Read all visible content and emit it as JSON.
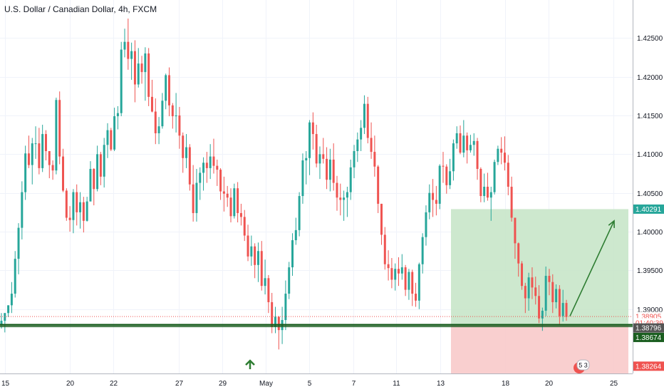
{
  "header": {
    "title": "U.S. Dollar / Canadian Dollar, 4h, FXCM"
  },
  "colors": {
    "up": "#26a69a",
    "down": "#ef5350",
    "profit_zone": "#c8e6c9",
    "loss_zone": "#f8caca",
    "support_line": "#1b5e20",
    "arrow": "#2e7d32"
  },
  "chart_data": {
    "type": "candlestick",
    "title": "U.S. Dollar / Canadian Dollar, 4h, FXCM",
    "ylim": [
      1.3817,
      1.4299
    ],
    "y_ticks": [
      "1.42500",
      "1.42000",
      "1.41500",
      "1.41000",
      "1.40500",
      "1.40000",
      "1.39500",
      "1.39000"
    ],
    "x_ticks": [
      "15",
      "20",
      "22",
      "27",
      "29",
      "May",
      "5",
      "7",
      "11",
      "13",
      "18",
      "20",
      "25"
    ],
    "price_tags": [
      {
        "label": "1.40291",
        "value": 1.40291,
        "bg": "#26a69a",
        "fg": "#ffffff"
      },
      {
        "label": "1.38905",
        "value": 1.38905,
        "bg": "#ffffff",
        "fg": "#ef5350"
      },
      {
        "label": "01:40:39",
        "value": 1.38825,
        "bg": "#ffffff",
        "fg": "#ef5350"
      },
      {
        "label": "1.38796",
        "value": 1.38757,
        "bg": "#555555",
        "fg": "#ffffff"
      },
      {
        "label": "1.38674",
        "value": 1.38635,
        "bg": "#1b5e20",
        "fg": "#ffffff"
      },
      {
        "label": "1.38264",
        "value": 1.38264,
        "bg": "#ef5350",
        "fg": "#ffffff"
      }
    ],
    "position": {
      "entry": 1.38796,
      "target": 1.40291,
      "stop": 1.38264
    },
    "support_level": 1.38796,
    "current_price": 1.38905,
    "badge": "5 3",
    "candles": [
      [
        1.388,
        1.3895,
        1.3875,
        1.3885
      ],
      [
        1.3885,
        1.3895,
        1.387,
        1.3895
      ],
      [
        1.3895,
        1.3905,
        1.389,
        1.3905
      ],
      [
        1.3905,
        1.3935,
        1.3895,
        1.392
      ],
      [
        1.392,
        1.3975,
        1.3915,
        1.3965
      ],
      [
        1.3965,
        1.4011,
        1.3945,
        1.4005
      ],
      [
        1.4005,
        1.4065,
        1.399,
        1.4051
      ],
      [
        1.4051,
        1.4111,
        1.4041,
        1.4101
      ],
      [
        1.4101,
        1.4124,
        1.4082,
        1.4086
      ],
      [
        1.4086,
        1.4121,
        1.4061,
        1.4114
      ],
      [
        1.4114,
        1.4136,
        1.4094,
        1.4114
      ],
      [
        1.4114,
        1.4134,
        1.4074,
        1.4082
      ],
      [
        1.4082,
        1.4138,
        1.4077,
        1.4126
      ],
      [
        1.4126,
        1.4131,
        1.4092,
        1.4104
      ],
      [
        1.4104,
        1.4104,
        1.4069,
        1.4086
      ],
      [
        1.4086,
        1.4092,
        1.4067,
        1.4079
      ],
      [
        1.4079,
        1.4173,
        1.4074,
        1.417
      ],
      [
        1.417,
        1.4181,
        1.4087,
        1.4097
      ],
      [
        1.4097,
        1.4107,
        1.4051,
        1.4053
      ],
      [
        1.4053,
        1.4056,
        1.4014,
        1.4018
      ],
      [
        1.4018,
        1.4033,
        1.4,
        1.4015
      ],
      [
        1.4015,
        1.4055,
        1.3998,
        1.4051
      ],
      [
        1.4051,
        1.4061,
        1.4008,
        1.4025
      ],
      [
        1.4025,
        1.4051,
        1.4004,
        1.4038
      ],
      [
        1.4038,
        1.4045,
        1.3999,
        1.4014
      ],
      [
        1.4014,
        1.4045,
        1.4013,
        1.4039
      ],
      [
        1.4039,
        1.4091,
        1.4039,
        1.4081
      ],
      [
        1.4081,
        1.4082,
        1.4034,
        1.4055
      ],
      [
        1.4055,
        1.4111,
        1.4052,
        1.41
      ],
      [
        1.41,
        1.4103,
        1.406,
        1.4071
      ],
      [
        1.4071,
        1.4121,
        1.4057,
        1.4112
      ],
      [
        1.4112,
        1.414,
        1.4095,
        1.4131
      ],
      [
        1.4131,
        1.4134,
        1.4104,
        1.4106
      ],
      [
        1.4106,
        1.416,
        1.4104,
        1.4149
      ],
      [
        1.4149,
        1.4162,
        1.4132,
        1.4153
      ],
      [
        1.4153,
        1.4245,
        1.4149,
        1.4235
      ],
      [
        1.4235,
        1.4262,
        1.4225,
        1.4245
      ],
      [
        1.4245,
        1.4275,
        1.4209,
        1.4223
      ],
      [
        1.4223,
        1.4244,
        1.4196,
        1.4233
      ],
      [
        1.4233,
        1.4247,
        1.4167,
        1.419
      ],
      [
        1.419,
        1.4237,
        1.4186,
        1.4217
      ],
      [
        1.4217,
        1.4227,
        1.4191,
        1.4206
      ],
      [
        1.4206,
        1.4238,
        1.4169,
        1.423
      ],
      [
        1.423,
        1.4237,
        1.4162,
        1.4174
      ],
      [
        1.4174,
        1.4196,
        1.4154,
        1.4155
      ],
      [
        1.4155,
        1.4172,
        1.4113,
        1.4127
      ],
      [
        1.4127,
        1.4148,
        1.4113,
        1.4136
      ],
      [
        1.4136,
        1.4179,
        1.4133,
        1.4169
      ],
      [
        1.4169,
        1.4204,
        1.4158,
        1.4202
      ],
      [
        1.4202,
        1.4212,
        1.4149,
        1.4163
      ],
      [
        1.4163,
        1.4166,
        1.4133,
        1.4149
      ],
      [
        1.4149,
        1.4179,
        1.4128,
        1.415
      ],
      [
        1.415,
        1.4161,
        1.4107,
        1.4124
      ],
      [
        1.4124,
        1.4128,
        1.4076,
        1.4095
      ],
      [
        1.4095,
        1.4126,
        1.4082,
        1.4109
      ],
      [
        1.4109,
        1.4113,
        1.4053,
        1.4061
      ],
      [
        1.4061,
        1.4086,
        1.4013,
        1.4024
      ],
      [
        1.4024,
        1.4081,
        1.4013,
        1.4063
      ],
      [
        1.4063,
        1.4083,
        1.4041,
        1.4076
      ],
      [
        1.4076,
        1.4096,
        1.4053,
        1.4089
      ],
      [
        1.4089,
        1.4103,
        1.4063,
        1.4082
      ],
      [
        1.4082,
        1.4113,
        1.4068,
        1.4097
      ],
      [
        1.4097,
        1.412,
        1.4075,
        1.4085
      ],
      [
        1.4085,
        1.4093,
        1.4059,
        1.408
      ],
      [
        1.408,
        1.4082,
        1.4041,
        1.4052
      ],
      [
        1.4052,
        1.4071,
        1.4026,
        1.4049
      ],
      [
        1.4049,
        1.4059,
        1.4032,
        1.4044
      ],
      [
        1.4044,
        1.4056,
        1.4012,
        1.402
      ],
      [
        1.402,
        1.4062,
        1.4017,
        1.4056
      ],
      [
        1.4056,
        1.4064,
        1.4012,
        1.4024
      ],
      [
        1.4024,
        1.4036,
        1.4008,
        1.4019
      ],
      [
        1.4019,
        1.4028,
        1.3988,
        1.3995
      ],
      [
        1.3995,
        1.4009,
        1.3962,
        1.3968
      ],
      [
        1.3968,
        1.3995,
        1.3956,
        1.3981
      ],
      [
        1.3981,
        1.3985,
        1.394,
        1.3957
      ],
      [
        1.3957,
        1.3986,
        1.3935,
        1.3975
      ],
      [
        1.3975,
        1.3988,
        1.3924,
        1.393
      ],
      [
        1.393,
        1.3964,
        1.3919,
        1.394
      ],
      [
        1.394,
        1.3944,
        1.3895,
        1.3909
      ],
      [
        1.3909,
        1.3921,
        1.3869,
        1.3877
      ],
      [
        1.3877,
        1.3903,
        1.3869,
        1.389
      ],
      [
        1.389,
        1.3891,
        1.3848,
        1.3873
      ],
      [
        1.3873,
        1.3903,
        1.3855,
        1.3886
      ],
      [
        1.3886,
        1.3937,
        1.3873,
        1.392
      ],
      [
        1.392,
        1.3961,
        1.3913,
        1.3954
      ],
      [
        1.3954,
        1.3998,
        1.3943,
        1.3989
      ],
      [
        1.3989,
        1.4018,
        1.3983,
        1.4002
      ],
      [
        1.4002,
        1.4051,
        1.3994,
        1.4046
      ],
      [
        1.4046,
        1.4101,
        1.4036,
        1.4092
      ],
      [
        1.4092,
        1.4104,
        1.4061,
        1.4095
      ],
      [
        1.4095,
        1.4144,
        1.4073,
        1.4141
      ],
      [
        1.4141,
        1.4154,
        1.4106,
        1.4126
      ],
      [
        1.4126,
        1.4138,
        1.4083,
        1.4088
      ],
      [
        1.4088,
        1.411,
        1.4068,
        1.41
      ],
      [
        1.41,
        1.4121,
        1.4088,
        1.4094
      ],
      [
        1.4094,
        1.4109,
        1.4055,
        1.4067
      ],
      [
        1.4067,
        1.4107,
        1.4052,
        1.4093
      ],
      [
        1.4093,
        1.4114,
        1.4053,
        1.4063
      ],
      [
        1.4063,
        1.4072,
        1.4027,
        1.4044
      ],
      [
        1.4044,
        1.4062,
        1.4021,
        1.4041
      ],
      [
        1.4041,
        1.4053,
        1.4014,
        1.4044
      ],
      [
        1.4044,
        1.4058,
        1.4019,
        1.4051
      ],
      [
        1.4051,
        1.4093,
        1.4041,
        1.4083
      ],
      [
        1.4083,
        1.4112,
        1.4069,
        1.4104
      ],
      [
        1.4104,
        1.4128,
        1.409,
        1.4119
      ],
      [
        1.4119,
        1.4144,
        1.4104,
        1.4134
      ],
      [
        1.4134,
        1.4176,
        1.4126,
        1.4165
      ],
      [
        1.4165,
        1.4174,
        1.4114,
        1.4121
      ],
      [
        1.4121,
        1.4141,
        1.4094,
        1.4103
      ],
      [
        1.4103,
        1.4124,
        1.4071,
        1.4084
      ],
      [
        1.4084,
        1.4086,
        1.4024,
        1.4036
      ],
      [
        1.4036,
        1.4036,
        1.3983,
        1.3996
      ],
      [
        1.3996,
        1.4006,
        1.3951,
        1.3958
      ],
      [
        1.3958,
        1.3976,
        1.3937,
        1.3953
      ],
      [
        1.3953,
        1.3966,
        1.3927,
        1.3938
      ],
      [
        1.3938,
        1.3959,
        1.3924,
        1.3952
      ],
      [
        1.3952,
        1.3967,
        1.393,
        1.3946
      ],
      [
        1.3946,
        1.3971,
        1.3938,
        1.3954
      ],
      [
        1.3954,
        1.3957,
        1.3917,
        1.3925
      ],
      [
        1.3925,
        1.3952,
        1.3912,
        1.3948
      ],
      [
        1.3948,
        1.3951,
        1.3904,
        1.392
      ],
      [
        1.392,
        1.3934,
        1.3903,
        1.3911
      ],
      [
        1.3911,
        1.396,
        1.39,
        1.3958
      ],
      [
        1.3958,
        1.3998,
        1.3946,
        1.3993
      ],
      [
        1.3993,
        1.4034,
        1.3982,
        1.4025
      ],
      [
        1.4025,
        1.4061,
        1.4016,
        1.405
      ],
      [
        1.405,
        1.4068,
        1.4019,
        1.4041
      ],
      [
        1.4041,
        1.4059,
        1.4021,
        1.4036
      ],
      [
        1.4036,
        1.4087,
        1.4029,
        1.4085
      ],
      [
        1.4085,
        1.4103,
        1.4063,
        1.4084
      ],
      [
        1.4084,
        1.4087,
        1.4049,
        1.406
      ],
      [
        1.406,
        1.4094,
        1.4055,
        1.4078
      ],
      [
        1.4078,
        1.4119,
        1.4066,
        1.4114
      ],
      [
        1.4114,
        1.4136,
        1.4107,
        1.4127
      ],
      [
        1.4127,
        1.4137,
        1.41,
        1.4102
      ],
      [
        1.4102,
        1.4144,
        1.4096,
        1.4124
      ],
      [
        1.4124,
        1.4128,
        1.4088,
        1.4105
      ],
      [
        1.4105,
        1.4125,
        1.4102,
        1.4112
      ],
      [
        1.4112,
        1.4127,
        1.4098,
        1.4117
      ],
      [
        1.4117,
        1.4121,
        1.4067,
        1.4081
      ],
      [
        1.4081,
        1.4083,
        1.4038,
        1.4046
      ],
      [
        1.4046,
        1.4075,
        1.4038,
        1.4058
      ],
      [
        1.4058,
        1.4076,
        1.404,
        1.4044
      ],
      [
        1.4044,
        1.4058,
        1.4014,
        1.4051
      ],
      [
        1.4051,
        1.4093,
        1.4048,
        1.409
      ],
      [
        1.409,
        1.4111,
        1.4086,
        1.4107
      ],
      [
        1.4107,
        1.4122,
        1.4087,
        1.4102
      ],
      [
        1.4102,
        1.4123,
        1.4079,
        1.4089
      ],
      [
        1.4089,
        1.4099,
        1.4047,
        1.4058
      ],
      [
        1.4058,
        1.4071,
        1.4013,
        1.4018
      ],
      [
        1.4018,
        1.4018,
        1.3965,
        1.3985
      ],
      [
        1.3985,
        1.3986,
        1.3942,
        1.3959
      ],
      [
        1.3959,
        1.3962,
        1.3925,
        1.393
      ],
      [
        1.393,
        1.3934,
        1.3895,
        1.3914
      ],
      [
        1.3914,
        1.3947,
        1.3898,
        1.3941
      ],
      [
        1.3941,
        1.3954,
        1.3913,
        1.3928
      ],
      [
        1.3928,
        1.3942,
        1.3906,
        1.3917
      ],
      [
        1.3917,
        1.3931,
        1.3882,
        1.3888
      ],
      [
        1.3888,
        1.3902,
        1.3872,
        1.3898
      ],
      [
        1.3898,
        1.3955,
        1.3891,
        1.3943
      ],
      [
        1.3943,
        1.3952,
        1.3918,
        1.3935
      ],
      [
        1.3935,
        1.3945,
        1.3895,
        1.3909
      ],
      [
        1.3909,
        1.3932,
        1.3901,
        1.3926
      ],
      [
        1.3926,
        1.3931,
        1.3881,
        1.3891
      ],
      [
        1.3891,
        1.3925,
        1.3884,
        1.3908
      ],
      [
        1.3908,
        1.3912,
        1.3885,
        1.389
      ]
    ]
  }
}
